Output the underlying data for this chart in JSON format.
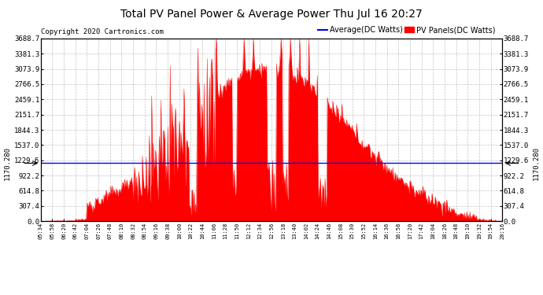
{
  "title": "Total PV Panel Power & Average Power Thu Jul 16 20:27",
  "copyright": "Copyright 2020 Cartronics.com",
  "legend_avg": "Average(DC Watts)",
  "legend_pv": "PV Panels(DC Watts)",
  "avg_color": "blue",
  "pv_color": "red",
  "avg_value": 1170.28,
  "y_max": 3688.7,
  "y_min": 0.0,
  "yticks": [
    0.0,
    307.4,
    614.8,
    922.2,
    1229.6,
    1537.0,
    1844.3,
    2151.7,
    2459.1,
    2766.5,
    3073.9,
    3381.3,
    3688.7
  ],
  "ytick_labels": [
    "0.0",
    "307.4",
    "614.8",
    "922.2",
    "1229.6",
    "1537.0",
    "1844.3",
    "2151.7",
    "2459.1",
    "2766.5",
    "3073.9",
    "3381.3",
    "3688.7"
  ],
  "background_color": "#ffffff",
  "grid_color": "#aaaaaa",
  "xtick_labels": [
    "05:34",
    "05:58",
    "06:20",
    "06:42",
    "07:04",
    "07:26",
    "07:48",
    "08:10",
    "08:32",
    "08:54",
    "09:16",
    "09:38",
    "10:00",
    "10:22",
    "10:44",
    "11:06",
    "11:28",
    "11:50",
    "12:12",
    "12:34",
    "12:56",
    "13:18",
    "13:40",
    "14:02",
    "14:24",
    "14:46",
    "15:08",
    "15:30",
    "15:52",
    "16:14",
    "16:36",
    "16:58",
    "17:20",
    "17:42",
    "18:04",
    "18:26",
    "18:48",
    "19:10",
    "19:32",
    "19:54",
    "20:16"
  ],
  "avg_label": "1170.280"
}
